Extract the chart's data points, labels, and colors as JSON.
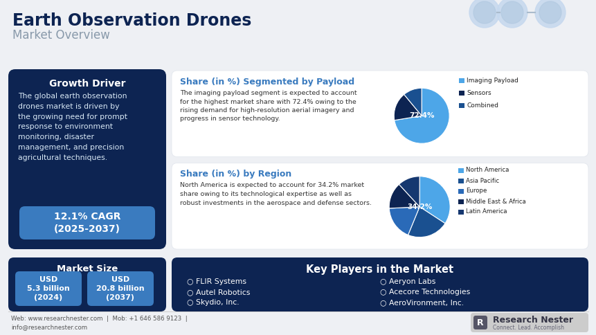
{
  "title_line1": "Earth Observation Drones",
  "title_line2": "Market Overview",
  "bg_color": "#eef0f4",
  "dark_navy": "#0d2452",
  "medium_blue": "#1a4080",
  "light_blue": "#3a7bbf",
  "bright_blue": "#4da6e8",
  "panel_bg": "#ffffff",
  "growth_driver_title": "Growth Driver",
  "growth_driver_text": "The global earth observation\ndrones market is driven by\nthe growing need for prompt\nresponse to environment\nmonitoring, disaster\nmanagement, and precision\nagricultural techniques.",
  "cagr_text": "12.1% CAGR\n(2025-2037)",
  "payload_title": "Share (in %) Segmented by Payload",
  "payload_text": "The imaging payload segment is expected to account\nfor the highest market share with 72.4% owing to the\nrising demand for high-resolution aerial imagery and\nprogress in sensor technology.",
  "payload_slices": [
    72.4,
    16.6,
    11.0
  ],
  "payload_colors": [
    "#4da6e8",
    "#0d2452",
    "#1a5090"
  ],
  "payload_labels": [
    "Imaging Payload",
    "Sensors",
    "Combined"
  ],
  "payload_center_label": "72.4%",
  "region_title": "Share (in %) by Region",
  "region_text": "North America is expected to account for 34.2% market\nshare owing to its technological expertise as well as\nrobust investments in the aerospace and defense sectors.",
  "region_slices": [
    34.2,
    22.0,
    18.0,
    14.0,
    11.8
  ],
  "region_colors": [
    "#4da6e8",
    "#1a5090",
    "#2a6ab8",
    "#0d2452",
    "#163870"
  ],
  "region_labels": [
    "North America",
    "Asia Pacific",
    "Europe",
    "Middle East & Africa",
    "Latin America"
  ],
  "region_center_label": "34.2%",
  "market_size_title": "Market Size",
  "market_size_1": "USD\n5.3 billion\n(2024)",
  "market_size_2": "USD\n20.8 billion\n(2037)",
  "key_players_title": "Key Players in the Market",
  "key_players_col1": [
    "FLIR Systems",
    "Autel Robotics",
    "Skydio, Inc."
  ],
  "key_players_col2": [
    "Aeryon Labs",
    "Acecore Technologies",
    "AeroVironment, Inc."
  ],
  "footer_text": "Web: www.researchnester.com  |  Mob: +1 646 586 9123  |\ninfo@researchnester.com",
  "footer_brand": "Research Nester",
  "footer_tagline": "Connect. Lead. Accomplish"
}
